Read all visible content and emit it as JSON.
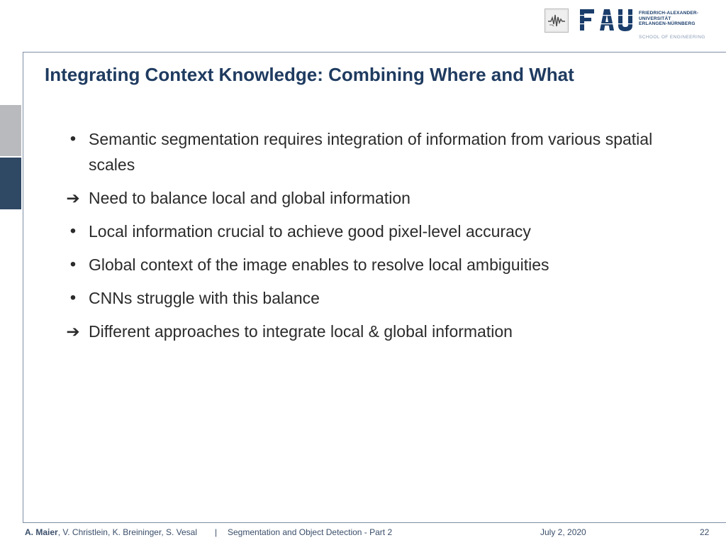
{
  "header": {
    "logo_small_icon": "waveform-logo-icon",
    "fau_logo_text": "FAU",
    "university_lines": [
      "FRIEDRICH-ALEXANDER-",
      "UNIVERSITÄT",
      "ERLANGEN-NÜRNBERG"
    ],
    "school": "SCHOOL OF ENGINEERING"
  },
  "slide": {
    "title": "Integrating Context Knowledge: Combining Where and What",
    "bullets": [
      {
        "marker": "•",
        "marker_icon": "bullet-dot-icon",
        "text": "Semantic segmentation requires integration of information from various spatial scales"
      },
      {
        "marker": "➔",
        "marker_icon": "arrow-right-icon",
        "text": "Need to balance local and global information"
      },
      {
        "marker": "•",
        "marker_icon": "bullet-dot-icon",
        "text": "Local information crucial to achieve good pixel-level accuracy"
      },
      {
        "marker": "•",
        "marker_icon": "bullet-dot-icon",
        "text": "Global context of the image enables to resolve local ambiguities"
      },
      {
        "marker": "•",
        "marker_icon": "bullet-dot-icon",
        "text": "CNNs struggle with this balance"
      },
      {
        "marker": "➔",
        "marker_icon": "arrow-right-icon",
        "text": "Different approaches to integrate local & global information"
      }
    ]
  },
  "footer": {
    "lead_author": "A. Maier",
    "coauthors": ", V. Christlein, K. Breininger, S. Vesal",
    "separator": "|",
    "lecture": "Segmentation and Object Detection - Part 2",
    "date": "July 2, 2020",
    "page": "22"
  },
  "colors": {
    "title": "#1f3b60",
    "frame": "#7e8ea3",
    "side_tab_light": "#b9babd",
    "side_tab_dark": "#2f4864",
    "text": "#2b2b2b"
  }
}
